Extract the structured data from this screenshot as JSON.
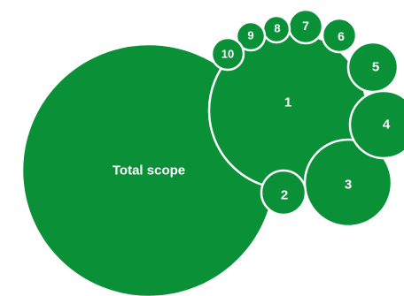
{
  "colors": {
    "fill": "#0A9138",
    "stroke": "#ffffff",
    "text": "#ffffff"
  },
  "bubbles": [
    {
      "id": "total",
      "label": "Total scope"
    },
    {
      "id": "b1",
      "label": "1"
    },
    {
      "id": "b2",
      "label": "2"
    },
    {
      "id": "b3",
      "label": "3"
    },
    {
      "id": "b4",
      "label": "4"
    },
    {
      "id": "b5",
      "label": "5"
    },
    {
      "id": "b6",
      "label": "6"
    },
    {
      "id": "b7",
      "label": "7"
    },
    {
      "id": "b8",
      "label": "8"
    },
    {
      "id": "b9",
      "label": "9"
    },
    {
      "id": "b10",
      "label": "10"
    }
  ]
}
